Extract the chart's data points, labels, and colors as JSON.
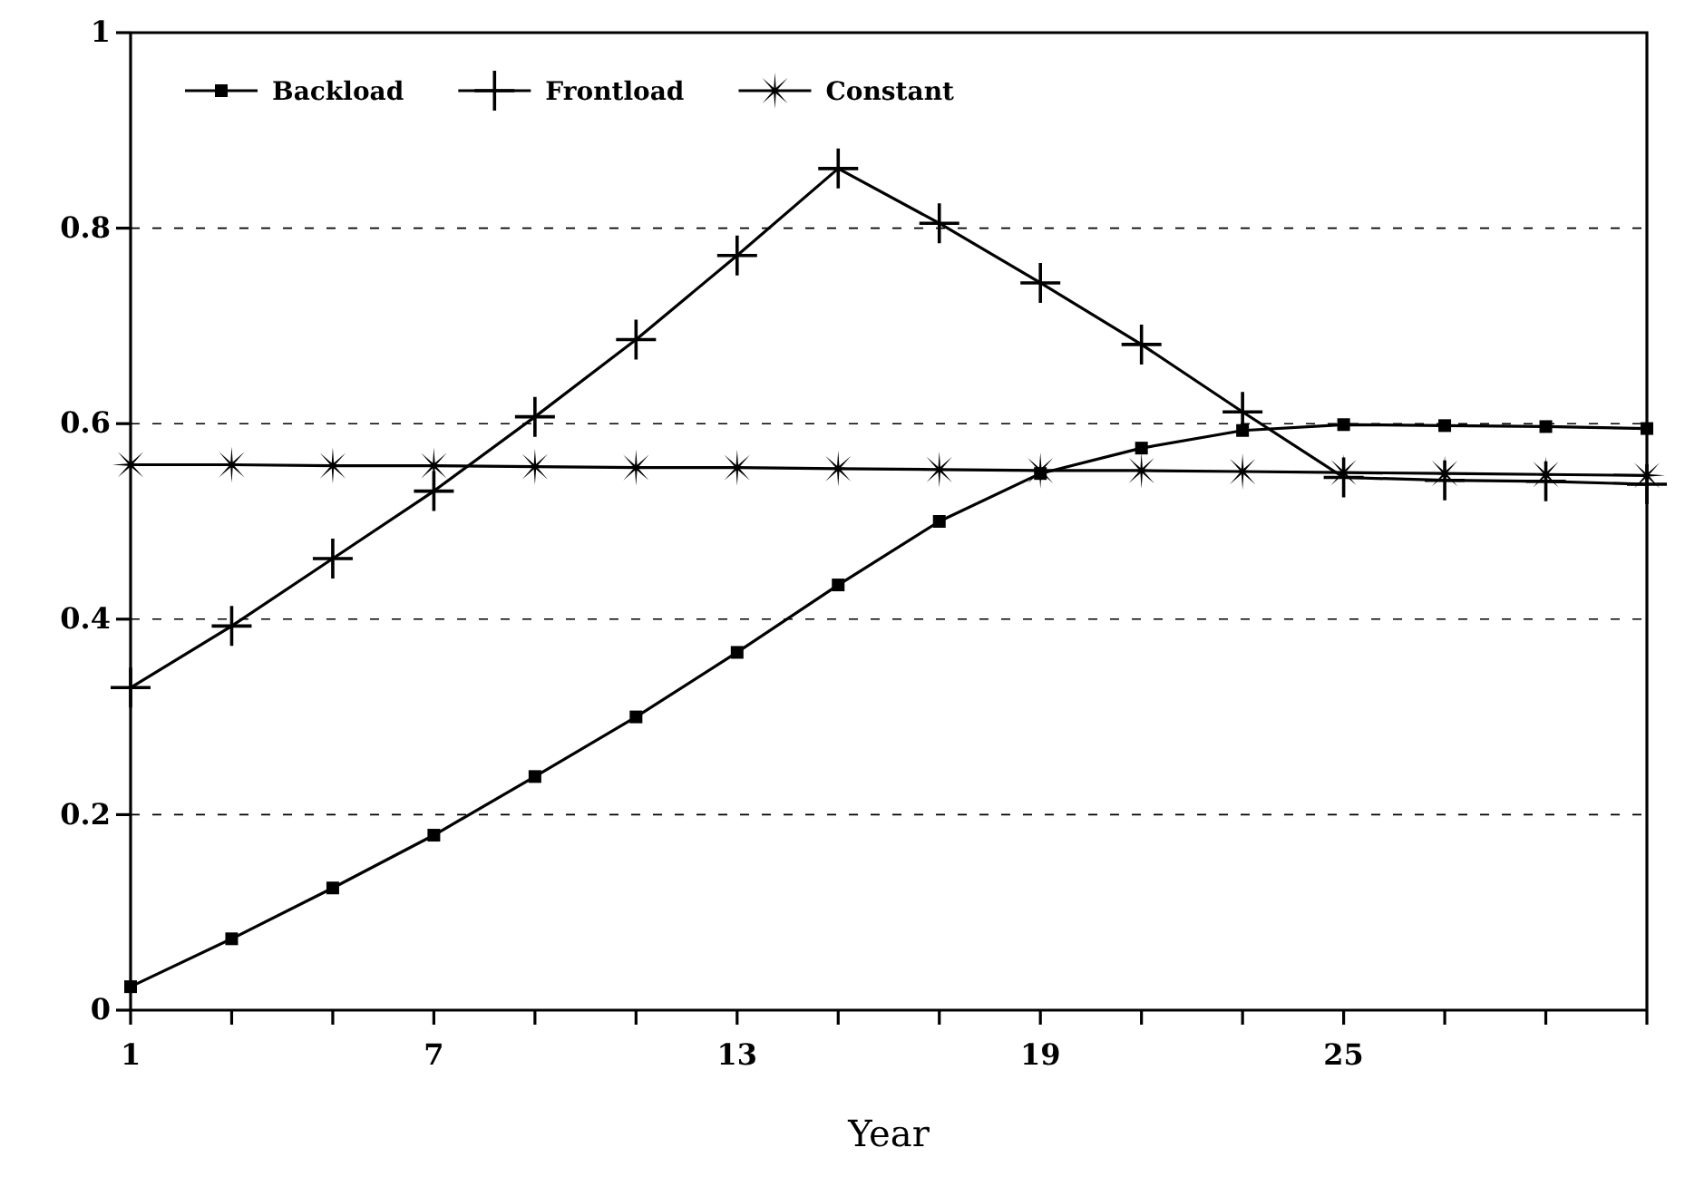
{
  "chart_data": {
    "type": "line",
    "xlabel": "Year",
    "x": [
      1,
      3,
      5,
      7,
      9,
      11,
      13,
      15,
      17,
      19,
      21,
      23,
      25,
      27,
      29,
      31
    ],
    "series": [
      {
        "name": "Backload",
        "color": "#000000",
        "marker": "square",
        "values": [
          0.024,
          0.073,
          0.125,
          0.179,
          0.239,
          0.3,
          0.366,
          0.435,
          0.5,
          0.549,
          0.575,
          0.593,
          0.599,
          0.598,
          0.597,
          0.595
        ]
      },
      {
        "name": "Frontload",
        "color": "#000000",
        "marker": "cross",
        "values": [
          0.33,
          0.393,
          0.462,
          0.531,
          0.607,
          0.686,
          0.772,
          0.861,
          0.805,
          0.744,
          0.681,
          0.612,
          0.545,
          0.542,
          0.541,
          0.538
        ]
      },
      {
        "name": "Constant",
        "color": "#000000",
        "marker": "star",
        "values": [
          0.558,
          0.558,
          0.557,
          0.557,
          0.556,
          0.555,
          0.555,
          0.554,
          0.553,
          0.552,
          0.552,
          0.551,
          0.55,
          0.549,
          0.548,
          0.547
        ]
      }
    ],
    "xlim": [
      1,
      31
    ],
    "xticks": [
      1,
      {
        "value": 3,
        "label": null
      },
      {
        "value": 5,
        "label": null
      },
      7,
      {
        "value": 9,
        "label": null
      },
      {
        "value": 11,
        "label": null
      },
      13,
      {
        "value": 15,
        "label": null
      },
      {
        "value": 17,
        "label": null
      },
      19,
      {
        "value": 21,
        "label": null
      },
      {
        "value": 23,
        "label": null
      },
      25,
      {
        "value": 27,
        "label": null
      },
      {
        "value": 29,
        "label": null
      },
      {
        "value": 31,
        "label": null
      }
    ],
    "ylim": [
      0,
      1
    ],
    "yticks": [
      0,
      0.2,
      0.4,
      0.6,
      0.8,
      1
    ],
    "grid": "y",
    "line_style": "solid",
    "legend": "top left"
  }
}
